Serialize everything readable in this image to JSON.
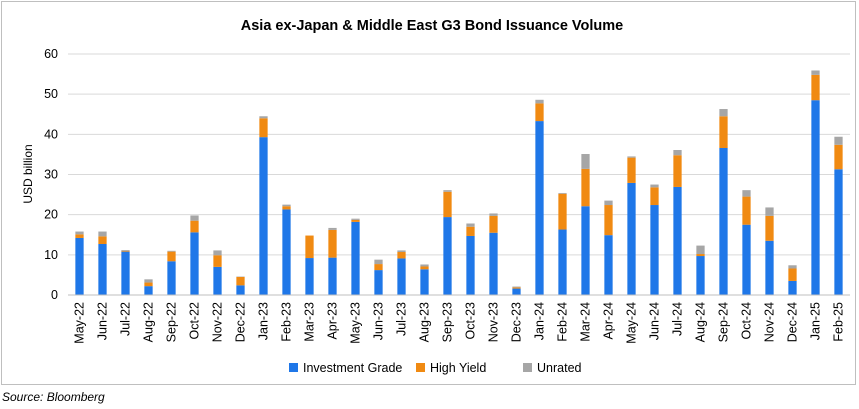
{
  "source": "Source: Bloomberg",
  "chart_data": {
    "type": "bar",
    "stacked": true,
    "title": "Asia ex-Japan & Middle East G3 Bond Issuance Volume",
    "xlabel": "",
    "ylabel": "USD billion",
    "ylim": [
      0,
      60
    ],
    "yticks": [
      0,
      10,
      20,
      30,
      40,
      50,
      60
    ],
    "grid": true,
    "legend_position": "bottom",
    "categories": [
      "May-22",
      "Jun-22",
      "Jul-22",
      "Aug-22",
      "Sep-22",
      "Oct-22",
      "Nov-22",
      "Dec-22",
      "Jan-23",
      "Feb-23",
      "Mar-23",
      "Apr-23",
      "May-23",
      "Jun-23",
      "Jul-23",
      "Aug-23",
      "Sep-23",
      "Oct-23",
      "Nov-23",
      "Dec-23",
      "Jan-24",
      "Feb-24",
      "Mar-24",
      "Apr-24",
      "May-24",
      "Jun-24",
      "Jul-24",
      "Aug-24",
      "Sep-24",
      "Oct-24",
      "Nov-24",
      "Dec-24",
      "Jan-25",
      "Feb-25"
    ],
    "series": [
      {
        "name": "Investment Grade",
        "color": "#1f77e8",
        "values": [
          14.2,
          12.7,
          10.8,
          2.2,
          8.4,
          15.6,
          7.0,
          2.4,
          39.3,
          21.3,
          9.2,
          9.3,
          18.2,
          6.2,
          9.1,
          6.4,
          19.4,
          14.7,
          15.5,
          1.6,
          43.3,
          16.3,
          22.1,
          14.9,
          27.9,
          22.4,
          26.9,
          9.7,
          36.6,
          17.5,
          13.5,
          3.5,
          48.5,
          31.3
        ]
      },
      {
        "name": "High Yield",
        "color": "#f08a12",
        "values": [
          0.9,
          1.9,
          0.2,
          0.9,
          2.4,
          2.9,
          2.9,
          2.1,
          4.7,
          0.8,
          5.6,
          6.9,
          0.5,
          1.5,
          1.6,
          0.7,
          6.3,
          2.3,
          4.2,
          0.3,
          4.4,
          8.9,
          9.3,
          7.5,
          6.3,
          4.4,
          7.9,
          0.5,
          7.9,
          7.0,
          6.2,
          3.1,
          6.3,
          6.1
        ]
      },
      {
        "name": "Unrated",
        "color": "#a6a6a6",
        "values": [
          0.7,
          1.2,
          0.2,
          0.8,
          0.2,
          1.3,
          1.2,
          0.1,
          0.5,
          0.4,
          0.0,
          0.5,
          0.3,
          1.1,
          0.4,
          0.5,
          0.4,
          0.8,
          0.6,
          0.2,
          0.9,
          0.2,
          3.7,
          1.1,
          0.3,
          0.7,
          1.3,
          2.1,
          1.8,
          1.6,
          2.1,
          0.8,
          1.1,
          2.0
        ]
      }
    ]
  }
}
